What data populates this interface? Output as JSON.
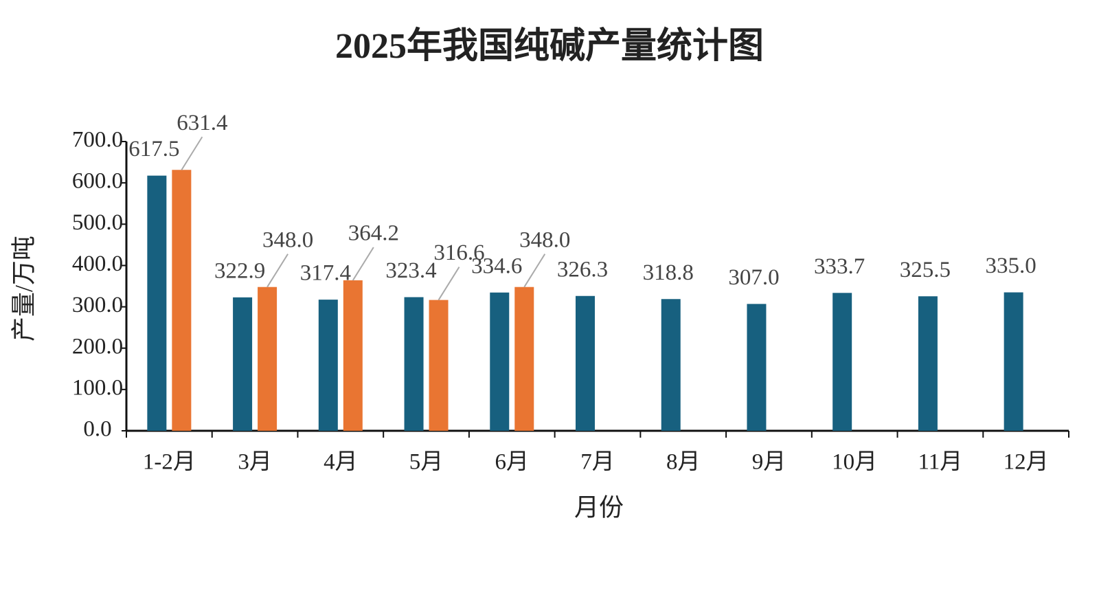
{
  "chart_data": {
    "type": "bar",
    "title": "2025年我国纯碱产量统计图",
    "x_label": "月份",
    "y_label": "产量/万吨",
    "categories": [
      "1-2月",
      "3月",
      "4月",
      "5月",
      "6月",
      "7月",
      "8月",
      "9月",
      "10月",
      "11月",
      "12月"
    ],
    "series": [
      {
        "color": "#17607f",
        "values": [
          617.5,
          322.9,
          317.4,
          323.4,
          334.6,
          326.3,
          318.8,
          307.0,
          333.7,
          325.5,
          335.0
        ],
        "value_labels": [
          "617.5",
          "322.9",
          "317.4",
          "323.4",
          "334.6",
          "326.3",
          "318.8",
          "307.0",
          "333.7",
          "325.5",
          "335.0"
        ]
      },
      {
        "color": "#e97532",
        "values": [
          631.4,
          348.0,
          364.2,
          316.6,
          348.0,
          null,
          null,
          null,
          null,
          null,
          null
        ],
        "value_labels": [
          "631.4",
          "348.0",
          "364.2",
          "316.6",
          "348.0",
          null,
          null,
          null,
          null,
          null,
          null
        ]
      }
    ],
    "ylim": [
      0,
      700
    ],
    "yticks": [
      {
        "value": 0,
        "label": "0.0"
      },
      {
        "value": 100,
        "label": "100.0"
      },
      {
        "value": 200,
        "label": "200.0"
      },
      {
        "value": 300,
        "label": "300.0"
      },
      {
        "value": 400,
        "label": "400.0"
      },
      {
        "value": 500,
        "label": "500.0"
      },
      {
        "value": 600,
        "label": "600.0"
      },
      {
        "value": 700,
        "label": "700.0"
      }
    ],
    "grid": false
  }
}
